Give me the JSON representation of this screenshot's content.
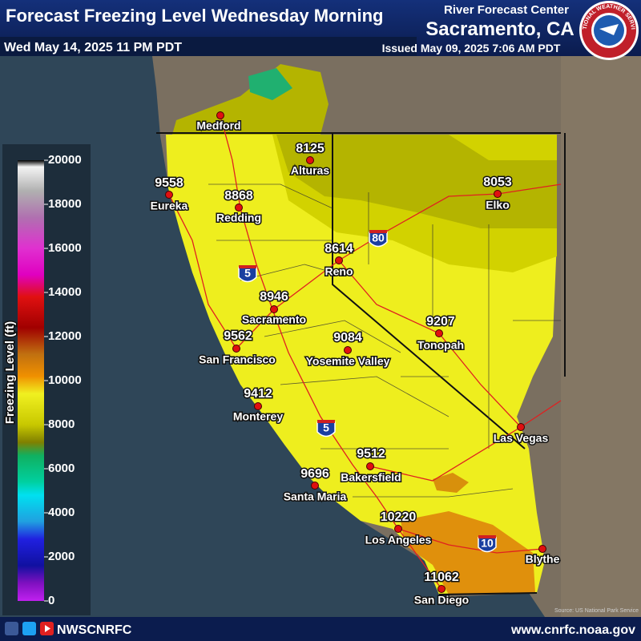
{
  "header": {
    "title": "Forecast Freezing Level Wednesday Morning",
    "valid_time": "Wed May 14, 2025 11 PM PDT",
    "center_line1": "River Forecast Center",
    "center_line2": "Sacramento, CA",
    "issued": "Issued May 09, 2025 7:06 AM PDT",
    "logo_text": "NATIONAL WEATHER SERVICE"
  },
  "legend": {
    "title": "Freezing Level (ft)",
    "ticks": [
      "20000",
      "18000",
      "16000",
      "14000",
      "12000",
      "10000",
      "8000",
      "6000",
      "4000",
      "2000",
      "0"
    ]
  },
  "cities": [
    {
      "name": "Medford"
    },
    {
      "name": "Eureka",
      "value": "9558"
    },
    {
      "name": "Redding",
      "value": "8868"
    },
    {
      "name": "Alturas",
      "value": "8125"
    },
    {
      "name": "Elko",
      "value": "8053"
    },
    {
      "name": "Reno",
      "value": "8614"
    },
    {
      "name": "Sacramento",
      "value": "8946"
    },
    {
      "name": "San Francisco",
      "value": "9562"
    },
    {
      "name": "Yosemite Valley",
      "value": "9084"
    },
    {
      "name": "Tonopah",
      "value": "9207"
    },
    {
      "name": "Monterey",
      "value": "9412"
    },
    {
      "name": "Las Vegas"
    },
    {
      "name": "Bakersfield",
      "value": "9512"
    },
    {
      "name": "Santa Maria",
      "value": "9696"
    },
    {
      "name": "Los Angeles",
      "value": "10220"
    },
    {
      "name": "Blythe"
    },
    {
      "name": "San Diego",
      "value": "11062"
    }
  ],
  "highways": [
    "5",
    "80",
    "5",
    "10"
  ],
  "source": "Source: US National Park Service",
  "footer": {
    "handle": "NWSCNRFC",
    "url": "www.cnrfc.noaa.gov"
  }
}
